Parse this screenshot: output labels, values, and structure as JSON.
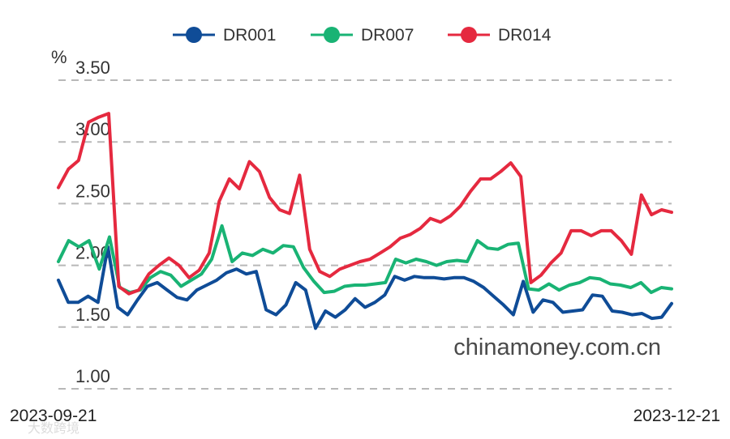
{
  "chart_data": {
    "type": "line",
    "ylabel": "%",
    "ylim": [
      1.0,
      3.5
    ],
    "yticks": [
      "3.50",
      "3.00",
      "2.50",
      "2.00",
      "1.50",
      "1.00"
    ],
    "ytick_values": [
      3.5,
      3.0,
      2.5,
      2.0,
      1.5,
      1.0
    ],
    "grid": true,
    "legend_position": "top",
    "x_start_label": "2023-09-21",
    "x_end_label": "2023-12-21",
    "series": [
      {
        "name": "DR001",
        "color": "#0f4c97",
        "values": [
          1.88,
          1.7,
          1.7,
          1.75,
          1.7,
          2.15,
          1.66,
          1.6,
          1.72,
          1.83,
          1.86,
          1.8,
          1.74,
          1.72,
          1.8,
          1.84,
          1.88,
          1.94,
          1.97,
          1.93,
          1.95,
          1.64,
          1.6,
          1.68,
          1.86,
          1.8,
          1.49,
          1.63,
          1.58,
          1.64,
          1.73,
          1.66,
          1.7,
          1.76,
          1.91,
          1.88,
          1.91,
          1.9,
          1.9,
          1.89,
          1.9,
          1.9,
          1.87,
          1.82,
          1.75,
          1.68,
          1.6,
          1.87,
          1.62,
          1.72,
          1.7,
          1.62,
          1.63,
          1.64,
          1.76,
          1.75,
          1.63,
          1.62,
          1.6,
          1.61,
          1.57,
          1.58,
          1.69
        ]
      },
      {
        "name": "DR007",
        "color": "#19b374",
        "values": [
          2.03,
          2.2,
          2.15,
          2.2,
          1.97,
          2.23,
          1.82,
          1.78,
          1.8,
          1.9,
          1.95,
          1.92,
          1.83,
          1.88,
          1.93,
          2.05,
          2.32,
          2.03,
          2.1,
          2.08,
          2.13,
          2.1,
          2.16,
          2.15,
          1.98,
          1.87,
          1.78,
          1.79,
          1.83,
          1.84,
          1.84,
          1.85,
          1.86,
          2.05,
          2.02,
          2.05,
          2.03,
          2.0,
          2.03,
          2.04,
          2.03,
          2.2,
          2.14,
          2.13,
          2.17,
          2.18,
          1.81,
          1.8,
          1.85,
          1.8,
          1.84,
          1.86,
          1.9,
          1.89,
          1.85,
          1.84,
          1.82,
          1.86,
          1.78,
          1.82,
          1.81
        ]
      },
      {
        "name": "DR014",
        "color": "#e5293f",
        "values": [
          2.63,
          2.78,
          2.85,
          3.16,
          3.2,
          3.23,
          1.83,
          1.77,
          1.8,
          1.93,
          2.0,
          2.06,
          2.0,
          1.9,
          1.96,
          2.1,
          2.52,
          2.7,
          2.62,
          2.84,
          2.76,
          2.55,
          2.45,
          2.42,
          2.73,
          2.13,
          1.95,
          1.91,
          1.97,
          2.0,
          2.03,
          2.05,
          2.1,
          2.15,
          2.22,
          2.25,
          2.3,
          2.38,
          2.35,
          2.4,
          2.48,
          2.6,
          2.7,
          2.7,
          2.76,
          2.83,
          2.72,
          1.86,
          1.92,
          2.02,
          2.1,
          2.28,
          2.28,
          2.24,
          2.28,
          2.28,
          2.2,
          2.09,
          2.57,
          2.41,
          2.45,
          2.43
        ]
      }
    ]
  },
  "watermark": "chinamoney.com.cn",
  "corner_mark": "大数跨境"
}
